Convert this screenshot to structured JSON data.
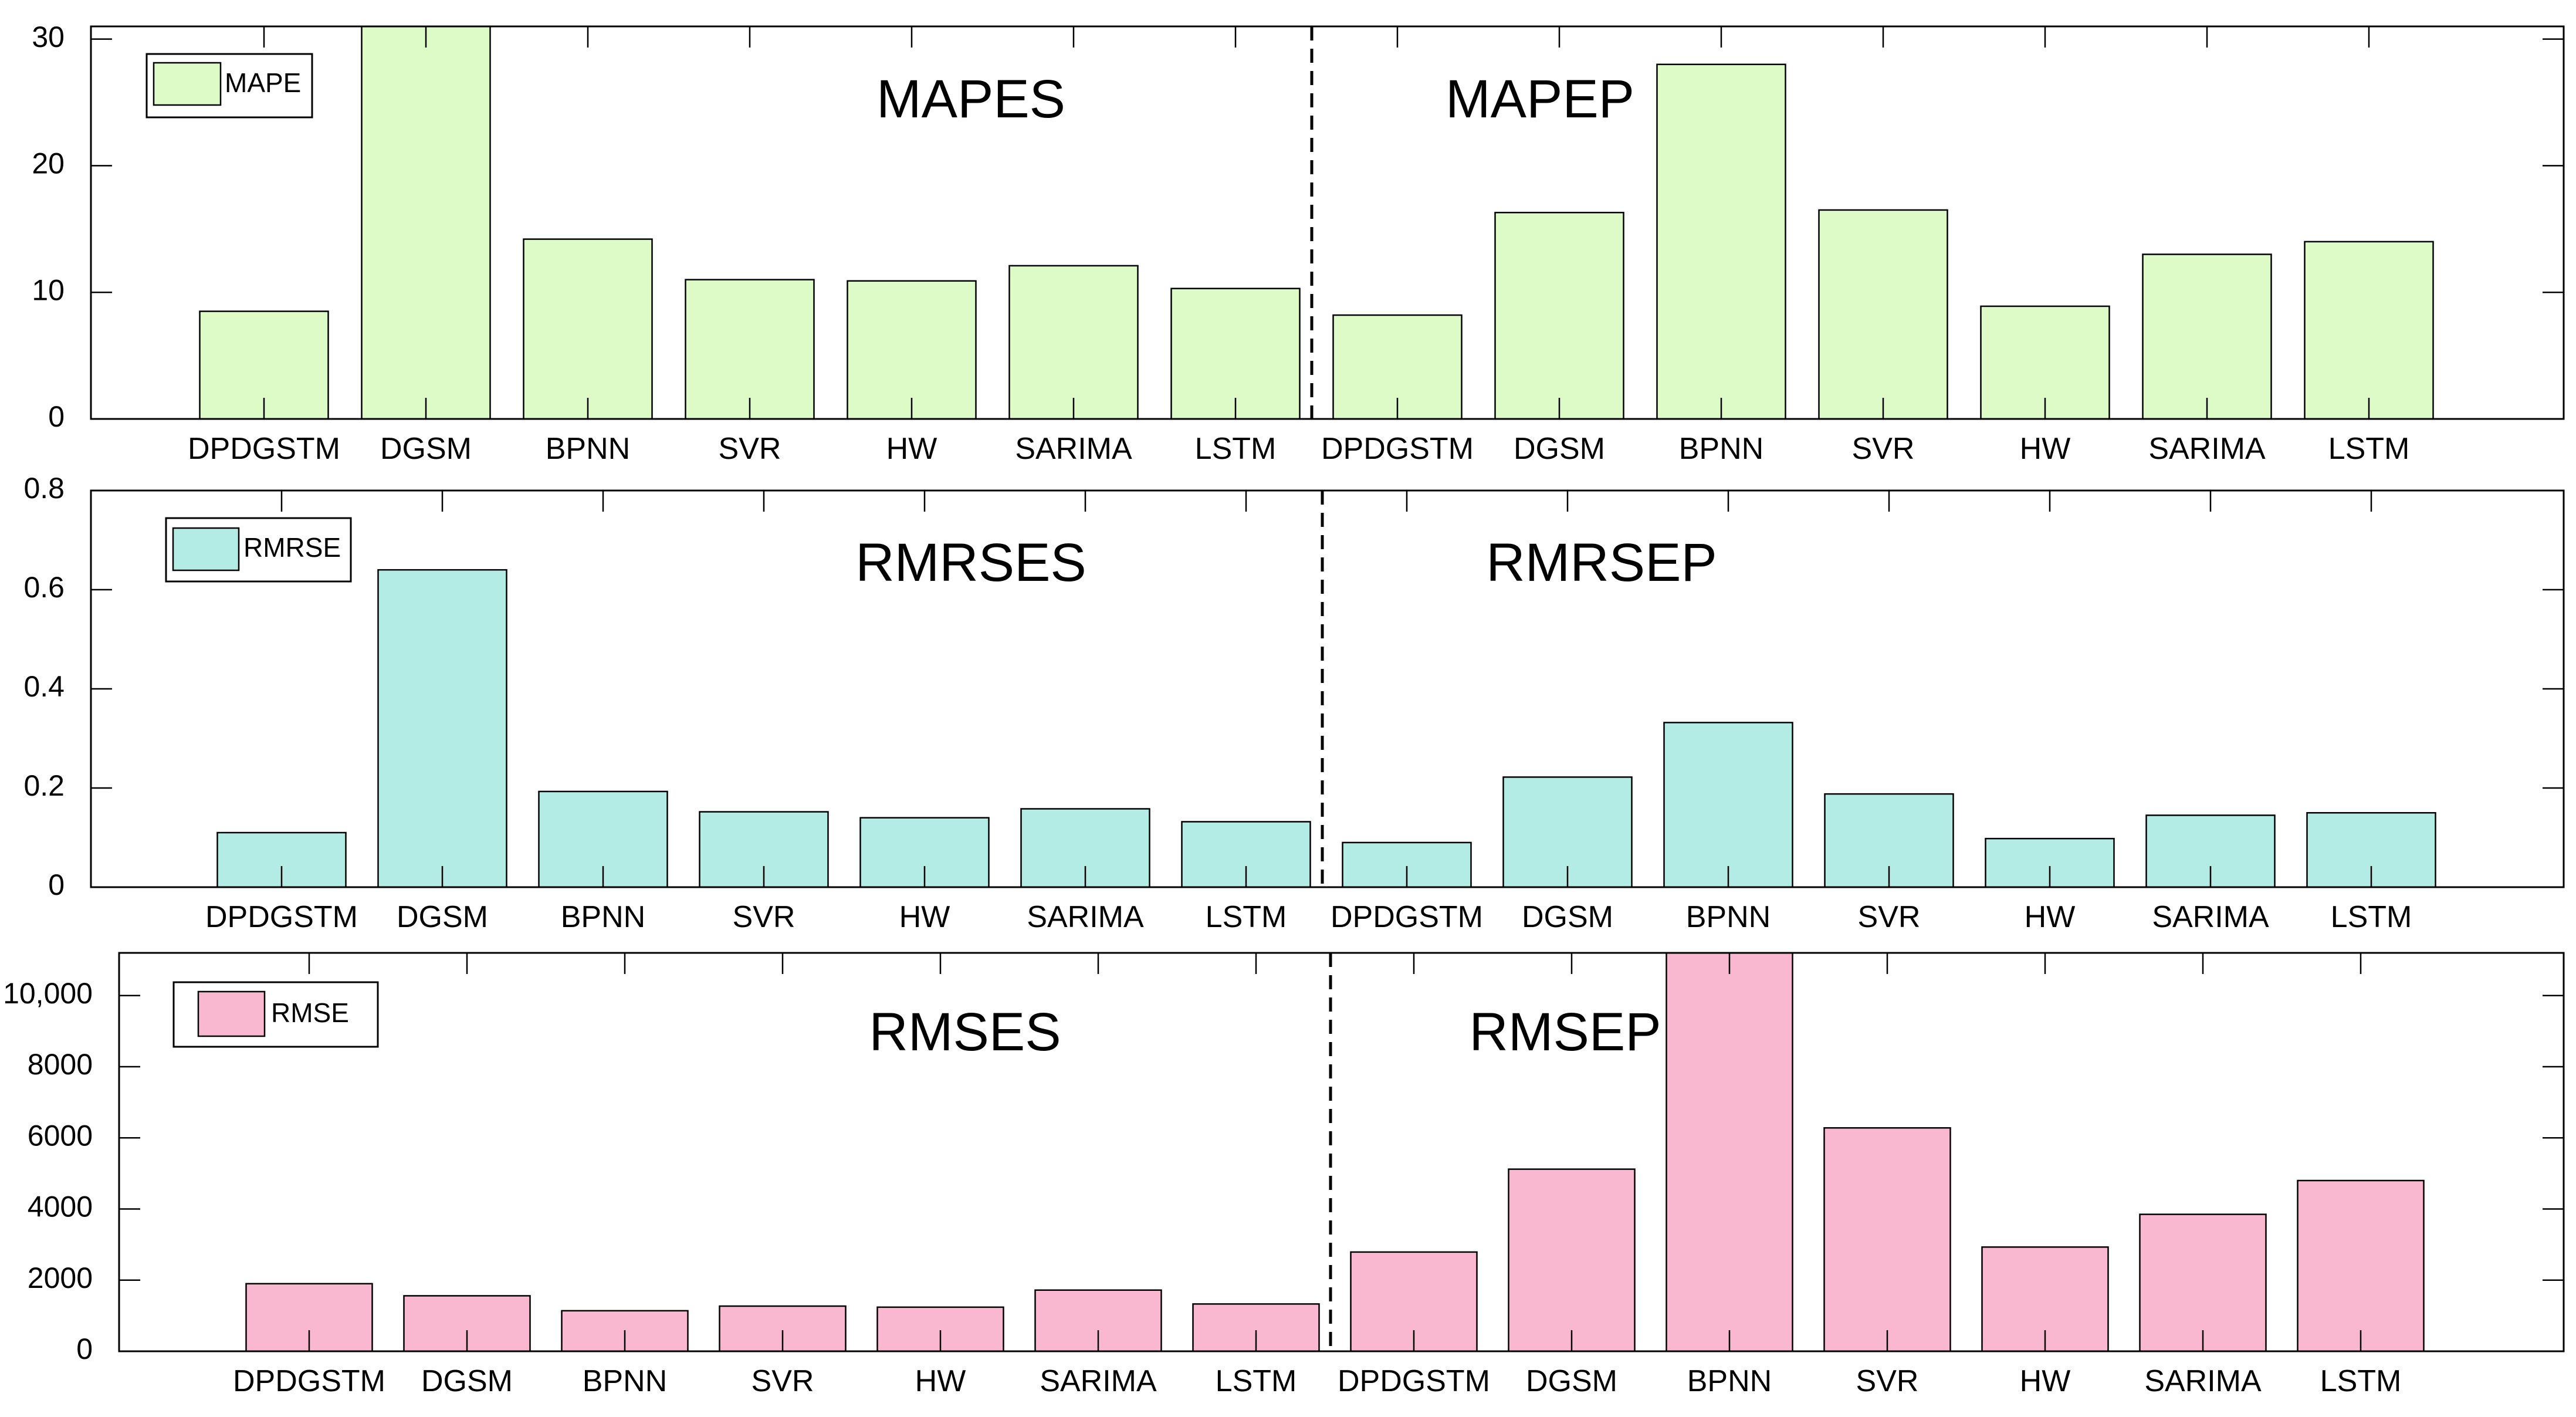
{
  "chart_data": [
    {
      "type": "bar",
      "legend": "MAPE",
      "color": "#DDFBC6",
      "left_label": "MAPES",
      "right_label": "MAPEP",
      "ylim": [
        0,
        31
      ],
      "yticks": [
        0,
        10,
        20,
        30
      ],
      "ytick_labels": [
        "0",
        "10",
        "20",
        "30"
      ],
      "categories": [
        "DPDGSTM",
        "DGSM",
        "BPNN",
        "SVR",
        "HW",
        "SARIMA",
        "LSTM",
        "DPDGSTM",
        "DGSM",
        "BPNN",
        "SVR",
        "HW",
        "SARIMA",
        "LSTM"
      ],
      "values": [
        8.5,
        31,
        14.2,
        11.0,
        10.9,
        12.1,
        10.3,
        8.2,
        16.3,
        28.0,
        16.5,
        8.9,
        13.0,
        14.0
      ]
    },
    {
      "type": "bar",
      "legend": "RMRSE",
      "color": "#B3ECE4",
      "left_label": "RMRSES",
      "right_label": "RMRSEP",
      "ylim": [
        0,
        0.8
      ],
      "yticks": [
        0,
        0.2,
        0.4,
        0.6,
        0.8
      ],
      "ytick_labels": [
        "0",
        "0.2",
        "0.4",
        "0.6",
        "0.8"
      ],
      "categories": [
        "DPDGSTM",
        "DGSM",
        "BPNN",
        "SVR",
        "HW",
        "SARIMA",
        "LSTM",
        "DPDGSTM",
        "DGSM",
        "BPNN",
        "SVR",
        "HW",
        "SARIMA",
        "LSTM"
      ],
      "values": [
        0.11,
        0.64,
        0.193,
        0.152,
        0.14,
        0.158,
        0.132,
        0.09,
        0.222,
        0.332,
        0.188,
        0.098,
        0.145,
        0.15
      ]
    },
    {
      "type": "bar",
      "legend": "RMSE",
      "color": "#F9B8CF",
      "left_label": "RMSES",
      "right_label": "RMSEP",
      "ylim": [
        0,
        11200
      ],
      "yticks": [
        0,
        2000,
        4000,
        6000,
        8000,
        10000
      ],
      "ytick_labels": [
        "0",
        "2000",
        "4000",
        "6000",
        "8000",
        "10,000"
      ],
      "categories": [
        "DPDGSTM",
        "DGSM",
        "BPNN",
        "SVR",
        "HW",
        "SARIMA",
        "LSTM",
        "DPDGSTM",
        "DGSM",
        "BPNN",
        "SVR",
        "HW",
        "SARIMA",
        "LSTM"
      ],
      "values": [
        1900,
        1560,
        1140,
        1270,
        1240,
        1720,
        1330,
        2790,
        5120,
        11200,
        6280,
        2930,
        3850,
        4800
      ]
    }
  ]
}
